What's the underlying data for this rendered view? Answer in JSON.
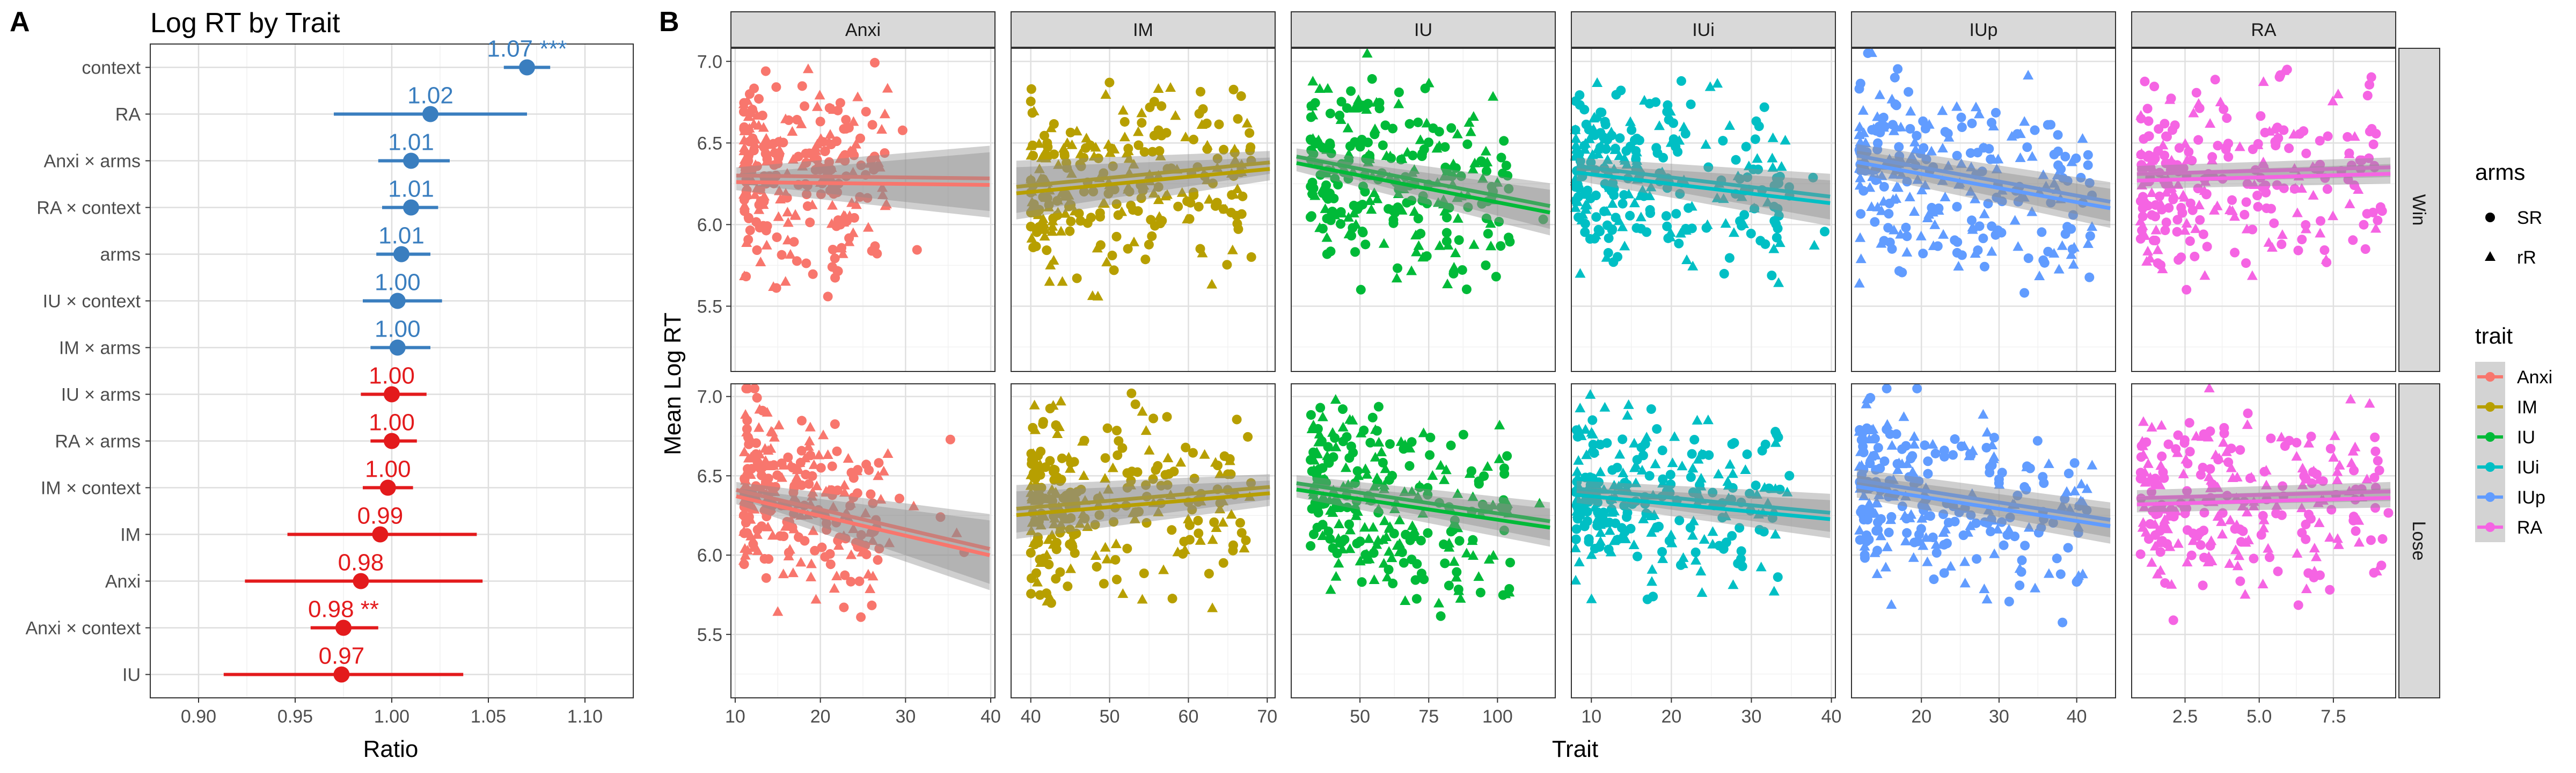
{
  "panel_a": {
    "letter": "A",
    "chart_data": {
      "type": "forest",
      "title": "Log RT by Trait",
      "xlabel": "Ratio",
      "xlim": [
        0.875,
        1.125
      ],
      "xticks": [
        "0.90",
        "0.95",
        "1.00",
        "1.05",
        "1.10"
      ],
      "xtick_values": [
        0.9,
        0.95,
        1.0,
        1.05,
        1.1
      ],
      "grid": true,
      "colors": {
        "positive": "#3a7ebf",
        "negative": "#e31a1c"
      },
      "rows": [
        {
          "term": "context",
          "estimate": 1.07,
          "lo": 1.058,
          "hi": 1.082,
          "label": "1.07",
          "stars": "***",
          "sign": "positive"
        },
        {
          "term": "RA",
          "estimate": 1.02,
          "lo": 0.97,
          "hi": 1.07,
          "label": "1.02",
          "stars": "",
          "sign": "positive"
        },
        {
          "term": "Anxi × arms",
          "estimate": 1.01,
          "lo": 0.993,
          "hi": 1.03,
          "label": "1.01",
          "stars": "",
          "sign": "positive"
        },
        {
          "term": "RA × context",
          "estimate": 1.01,
          "lo": 0.995,
          "hi": 1.024,
          "label": "1.01",
          "stars": "",
          "sign": "positive"
        },
        {
          "term": "arms",
          "estimate": 1.005,
          "lo": 0.992,
          "hi": 1.02,
          "label": "1.01",
          "stars": "",
          "sign": "positive"
        },
        {
          "term": "IU × context",
          "estimate": 1.003,
          "lo": 0.985,
          "hi": 1.026,
          "label": "1.00",
          "stars": "",
          "sign": "positive"
        },
        {
          "term": "IM × arms",
          "estimate": 1.003,
          "lo": 0.989,
          "hi": 1.02,
          "label": "1.00",
          "stars": "",
          "sign": "positive"
        },
        {
          "term": "IU × arms",
          "estimate": 1.0,
          "lo": 0.984,
          "hi": 1.018,
          "label": "1.00",
          "stars": "",
          "sign": "negative"
        },
        {
          "term": "RA × arms",
          "estimate": 1.0,
          "lo": 0.989,
          "hi": 1.013,
          "label": "1.00",
          "stars": "",
          "sign": "negative"
        },
        {
          "term": "IM × context",
          "estimate": 0.998,
          "lo": 0.985,
          "hi": 1.011,
          "label": "1.00",
          "stars": "",
          "sign": "negative"
        },
        {
          "term": "IM",
          "estimate": 0.994,
          "lo": 0.946,
          "hi": 1.044,
          "label": "0.99",
          "stars": "",
          "sign": "negative"
        },
        {
          "term": "Anxi",
          "estimate": 0.984,
          "lo": 0.924,
          "hi": 1.047,
          "label": "0.98",
          "stars": "",
          "sign": "negative"
        },
        {
          "term": "Anxi × context",
          "estimate": 0.975,
          "lo": 0.958,
          "hi": 0.993,
          "label": "0.98",
          "stars": "**",
          "sign": "negative"
        },
        {
          "term": "IU",
          "estimate": 0.974,
          "lo": 0.913,
          "hi": 1.037,
          "label": "0.97",
          "stars": "",
          "sign": "negative"
        }
      ]
    }
  },
  "panel_b": {
    "letter": "B",
    "chart_data": {
      "type": "scatter",
      "xlabel": "Trait",
      "ylabel": "Mean Log RT",
      "ylim": [
        5.1,
        7.08
      ],
      "yticks": [
        5.5,
        6.0,
        6.5,
        7.0
      ],
      "ytick_labels": [
        "5.5",
        "6.0",
        "6.5",
        "7.0"
      ],
      "grid": true,
      "rows": [
        "Win",
        "Lose"
      ],
      "legend_position": "right",
      "legends": {
        "arms": {
          "title": "arms",
          "items": [
            {
              "label": "SR",
              "shape": "circle"
            },
            {
              "label": "rR",
              "shape": "triangle"
            }
          ]
        },
        "trait": {
          "title": "trait",
          "items": [
            "Anxi",
            "IM",
            "IU",
            "IUi",
            "IUp",
            "RA"
          ]
        }
      },
      "series": [
        {
          "name": "Anxi",
          "color": "#f8766d",
          "xlim": [
            9.5,
            40.5
          ],
          "xticks": [
            10,
            20,
            30,
            40
          ],
          "xtick_labels": [
            "10",
            "20",
            "30",
            "40"
          ],
          "win": {
            "x_range": [
              11,
              28
            ],
            "fit": [
              6.28,
              6.27
            ],
            "se": [
              0.05,
              0.2
            ]
          },
          "lose": {
            "x_range": [
              11,
              27
            ],
            "fit": [
              6.38,
              6.18
            ],
            "se": [
              0.05,
              0.22
            ]
          }
        },
        {
          "name": "IM",
          "color": "#b79f00",
          "xlim": [
            37.5,
            71
          ],
          "xticks": [
            40,
            50,
            60,
            70
          ],
          "xtick_labels": [
            "40",
            "50",
            "60",
            "70"
          ],
          "win": {
            "x_range": [
              40,
              68
            ],
            "fit": [
              6.22,
              6.35
            ],
            "se": [
              0.16,
              0.07
            ]
          },
          "lose": {
            "x_range": [
              40,
              68
            ],
            "fit": [
              6.28,
              6.4
            ],
            "se": [
              0.15,
              0.08
            ]
          }
        },
        {
          "name": "IU",
          "color": "#00ba38",
          "xlim": [
            25,
            121
          ],
          "xticks": [
            50,
            75,
            100
          ],
          "xtick_labels": [
            "50",
            "75",
            "100"
          ],
          "win": {
            "x_range": [
              32,
              105
            ],
            "fit": [
              6.38,
              6.14
            ],
            "se": [
              0.05,
              0.14
            ]
          },
          "lose": {
            "x_range": [
              32,
              105
            ],
            "fit": [
              6.42,
              6.23
            ],
            "se": [
              0.05,
              0.12
            ]
          }
        },
        {
          "name": "IUi",
          "color": "#00bfc4",
          "xlim": [
            7.5,
            40.5
          ],
          "xticks": [
            10,
            20,
            30,
            40
          ],
          "xtick_labels": [
            "10",
            "20",
            "30",
            "40"
          ],
          "win": {
            "x_range": [
              8,
              35
            ],
            "fit": [
              6.34,
              6.18
            ],
            "se": [
              0.05,
              0.14
            ]
          },
          "lose": {
            "x_range": [
              8,
              35
            ],
            "fit": [
              6.4,
              6.27
            ],
            "se": [
              0.05,
              0.12
            ]
          }
        },
        {
          "name": "IUp",
          "color": "#619cff",
          "xlim": [
            11,
            45
          ],
          "xticks": [
            20,
            30,
            40
          ],
          "xtick_labels": [
            "20",
            "30",
            "40"
          ],
          "win": {
            "x_range": [
              12,
              42
            ],
            "fit": [
              6.4,
              6.14
            ],
            "se": [
              0.07,
              0.12
            ]
          },
          "lose": {
            "x_range": [
              12,
              42
            ],
            "fit": [
              6.45,
              6.22
            ],
            "se": [
              0.07,
              0.11
            ]
          }
        },
        {
          "name": "RA",
          "color": "#f564e3",
          "xlim": [
            0.7,
            9.6
          ],
          "xticks": [
            2.5,
            5.0,
            7.5
          ],
          "xtick_labels": [
            "2.5",
            "5.0",
            "7.5"
          ],
          "win": {
            "x_range": [
              1,
              9.2
            ],
            "fit": [
              6.29,
              6.33
            ],
            "se": [
              0.05,
              0.06
            ]
          },
          "lose": {
            "x_range": [
              1,
              9.2
            ],
            "fit": [
              6.34,
              6.38
            ],
            "se": [
              0.05,
              0.06
            ]
          }
        }
      ]
    }
  }
}
